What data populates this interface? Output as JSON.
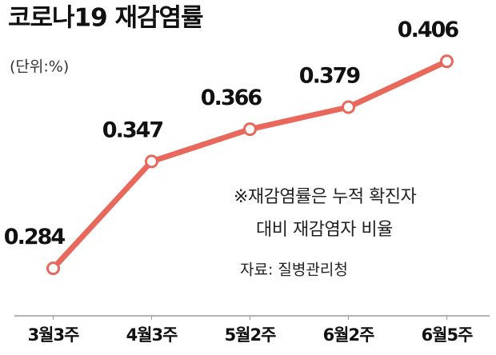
{
  "chart_data": {
    "type": "line",
    "title": "코로나19 재감염률",
    "subtitle": "(단위:%)",
    "categories": [
      "3월3주",
      "4월3주",
      "5월2주",
      "6월2주",
      "6월5주"
    ],
    "values": [
      0.284,
      0.347,
      0.366,
      0.379,
      0.406
    ],
    "color": "#e8685c",
    "ylim": [
      0.256,
      0.428
    ],
    "annotations": [
      "※재감염률은 누적 확진자",
      "대비 재감염자 비율"
    ],
    "source": "자료: 질병관리청"
  }
}
